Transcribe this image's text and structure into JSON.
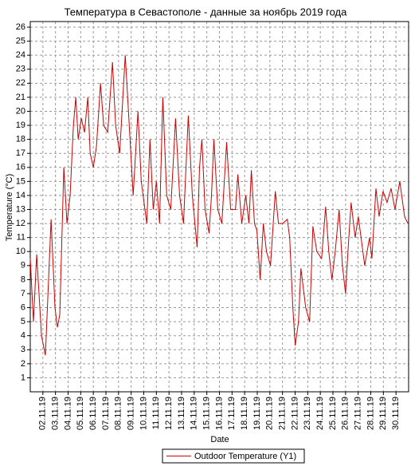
{
  "chart_data": {
    "type": "line",
    "title": "Температура в Севастополе - данные за ноябрь 2019 года",
    "x_label": "Date",
    "y_label": "Temperature (°C)",
    "x": [
      1.0,
      1.25,
      1.51,
      1.89,
      2.2,
      2.65,
      2.96,
      3.15,
      3.34,
      3.66,
      3.91,
      4.16,
      4.42,
      4.61,
      4.8,
      5.05,
      5.3,
      5.56,
      5.75,
      6.0,
      6.25,
      6.57,
      6.82,
      7.14,
      7.52,
      7.77,
      8.09,
      8.53,
      8.85,
      9.16,
      9.54,
      9.8,
      10.24,
      10.49,
      10.75,
      11.0,
      11.25,
      11.51,
      11.82,
      12.14,
      12.52,
      12.84,
      13.15,
      13.53,
      13.85,
      14.23,
      14.42,
      14.61,
      14.86,
      15.18,
      15.37,
      15.56,
      15.87,
      16.19,
      16.57,
      16.89,
      17.27,
      17.46,
      17.77,
      18.09,
      18.34,
      18.53,
      18.78,
      18.97,
      19.23,
      19.48,
      19.73,
      20.05,
      20.43,
      20.68,
      21.0,
      21.38,
      21.57,
      21.82,
      22.01,
      22.27,
      22.46,
      22.84,
      23.15,
      23.41,
      23.72,
      24.1,
      24.42,
      24.67,
      24.92,
      25.18,
      25.49,
      25.75,
      26.0,
      26.19,
      26.44,
      26.76,
      27.01,
      27.52,
      27.9,
      28.09,
      28.41,
      28.66,
      28.97,
      29.29,
      29.61,
      29.92,
      30.3,
      30.68,
      30.94
    ],
    "series": [
      {
        "name": "Outdoor Temperature (Y1)",
        "color": "#cc0000",
        "values": [
          9.5,
          5,
          9.8,
          4,
          2.6,
          12.3,
          6,
          4.6,
          5.5,
          16,
          12,
          14,
          19,
          21,
          18,
          19.5,
          18.5,
          21,
          17,
          16,
          17.5,
          22,
          19,
          18.5,
          23.5,
          19,
          17,
          24,
          19,
          14,
          20,
          15,
          12,
          18,
          13,
          15,
          12,
          21,
          14,
          13,
          19.5,
          14,
          12,
          19.7,
          14,
          10.3,
          16,
          18,
          13,
          11.3,
          14,
          18,
          13,
          12,
          17.8,
          13,
          13,
          15.5,
          12,
          14,
          12,
          15.8,
          12,
          11.5,
          8,
          12,
          10,
          9,
          14.3,
          12,
          12,
          12.3,
          11,
          6,
          3.3,
          5,
          8.8,
          6,
          5,
          11.8,
          10,
          9.5,
          13.2,
          10,
          8,
          10,
          13,
          9,
          7,
          10,
          13.5,
          11,
          12.5,
          9,
          11,
          9.5,
          14.5,
          12.5,
          14.3,
          13.5,
          14.5,
          13,
          15,
          12.5,
          12
        ]
      }
    ],
    "xlim": [
      1,
      31
    ],
    "xticks": [
      {
        "value": 2,
        "label": "02.11.19"
      },
      {
        "value": 3,
        "label": "03.11.19"
      },
      {
        "value": 4,
        "label": "04.11.19"
      },
      {
        "value": 5,
        "label": "05.11.19"
      },
      {
        "value": 6,
        "label": "06.11.19"
      },
      {
        "value": 7,
        "label": "07.11.19"
      },
      {
        "value": 8,
        "label": "08.11.19"
      },
      {
        "value": 9,
        "label": "09.11.19"
      },
      {
        "value": 10,
        "label": "10.11.19"
      },
      {
        "value": 11,
        "label": "11.11.19"
      },
      {
        "value": 12,
        "label": "12.11.19"
      },
      {
        "value": 13,
        "label": "13.11.19"
      },
      {
        "value": 14,
        "label": "14.11.19"
      },
      {
        "value": 15,
        "label": "15.11.19"
      },
      {
        "value": 16,
        "label": "16.11.19"
      },
      {
        "value": 17,
        "label": "17.11.19"
      },
      {
        "value": 18,
        "label": "18.11.19"
      },
      {
        "value": 19,
        "label": "19.11.19"
      },
      {
        "value": 20,
        "label": "20.11.19"
      },
      {
        "value": 21,
        "label": "21.11.19"
      },
      {
        "value": 22,
        "label": "22.11.19"
      },
      {
        "value": 23,
        "label": "23.11.19"
      },
      {
        "value": 24,
        "label": "24.11.19"
      },
      {
        "value": 25,
        "label": "25.11.19"
      },
      {
        "value": 26,
        "label": "26.11.19"
      },
      {
        "value": 27,
        "label": "27.11.19"
      },
      {
        "value": 28,
        "label": "28.11.19"
      },
      {
        "value": 29,
        "label": "29.11.19"
      },
      {
        "value": 30,
        "label": "30.11.19"
      }
    ],
    "ylim": [
      0,
      26.4
    ],
    "yticks": [
      1,
      2,
      3,
      4,
      5,
      6,
      7,
      8,
      9,
      10,
      11,
      12,
      13,
      14,
      15,
      16,
      17,
      18,
      19,
      20,
      21,
      22,
      23,
      24,
      25,
      26
    ],
    "grid": true
  }
}
